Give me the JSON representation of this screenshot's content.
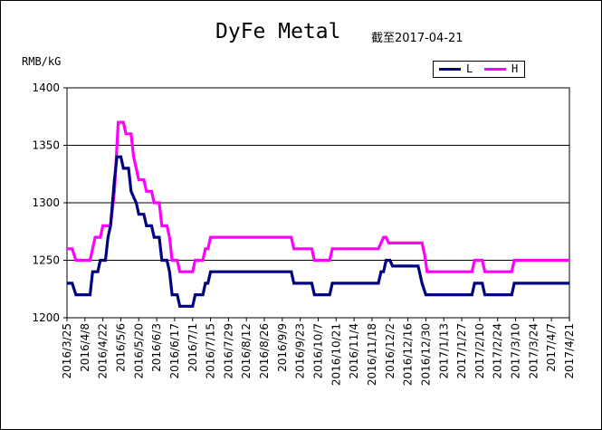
{
  "chart_data": {
    "type": "line",
    "title": "DyFe Metal",
    "subtitle": "截至2017-04-21",
    "ylabel": "RMB/kG",
    "xlabel": "",
    "ylim": [
      1200,
      1400
    ],
    "yticks": [
      1200,
      1250,
      1300,
      1350,
      1400
    ],
    "grid": "horizontal",
    "legend": "top-right",
    "colors": {
      "L": "#000080",
      "H": "#ff00ff"
    },
    "x_tick_labels": [
      "2016/3/25",
      "2016/4/8",
      "2016/4/22",
      "2016/5/6",
      "2016/5/20",
      "2016/6/3",
      "2016/6/17",
      "2016/7/1",
      "2016/7/15",
      "2016/7/29",
      "2016/8/12",
      "2016/8/26",
      "2016/9/9",
      "2016/9/23",
      "2016/10/7",
      "2016/10/21",
      "2016/11/4",
      "2016/11/18",
      "2016/12/2",
      "2016/12/16",
      "2016/12/30",
      "2017/1/13",
      "2017/1/27",
      "2017/2/10",
      "2017/2/24",
      "2017/3/10",
      "2017/3/24",
      "2017/4/7",
      "2017/4/21"
    ],
    "x_range": [
      "2016/3/25",
      "2017/4/21"
    ],
    "series": [
      {
        "name": "L",
        "points": [
          [
            "2016/3/25",
            1230
          ],
          [
            "2016/3/29",
            1230
          ],
          [
            "2016/4/1",
            1220
          ],
          [
            "2016/4/12",
            1220
          ],
          [
            "2016/4/14",
            1240
          ],
          [
            "2016/4/18",
            1240
          ],
          [
            "2016/4/20",
            1250
          ],
          [
            "2016/4/24",
            1250
          ],
          [
            "2016/4/26",
            1270
          ],
          [
            "2016/4/28",
            1280
          ],
          [
            "2016/5/1",
            1320
          ],
          [
            "2016/5/3",
            1340
          ],
          [
            "2016/5/6",
            1340
          ],
          [
            "2016/5/8",
            1330
          ],
          [
            "2016/5/12",
            1330
          ],
          [
            "2016/5/14",
            1310
          ],
          [
            "2016/5/16",
            1305
          ],
          [
            "2016/5/18",
            1300
          ],
          [
            "2016/5/20",
            1290
          ],
          [
            "2016/5/24",
            1290
          ],
          [
            "2016/5/26",
            1280
          ],
          [
            "2016/5/30",
            1280
          ],
          [
            "2016/6/1",
            1270
          ],
          [
            "2016/6/5",
            1270
          ],
          [
            "2016/6/7",
            1250
          ],
          [
            "2016/6/11",
            1250
          ],
          [
            "2016/6/13",
            1240
          ],
          [
            "2016/6/15",
            1220
          ],
          [
            "2016/6/19",
            1220
          ],
          [
            "2016/6/21",
            1210
          ],
          [
            "2016/7/1",
            1210
          ],
          [
            "2016/7/3",
            1220
          ],
          [
            "2016/7/9",
            1220
          ],
          [
            "2016/7/11",
            1230
          ],
          [
            "2016/7/13",
            1230
          ],
          [
            "2016/7/15",
            1240
          ],
          [
            "2016/9/16",
            1240
          ],
          [
            "2016/9/18",
            1230
          ],
          [
            "2016/10/2",
            1230
          ],
          [
            "2016/10/4",
            1220
          ],
          [
            "2016/10/16",
            1220
          ],
          [
            "2016/10/18",
            1230
          ],
          [
            "2016/11/23",
            1230
          ],
          [
            "2016/11/25",
            1240
          ],
          [
            "2016/11/27",
            1240
          ],
          [
            "2016/11/29",
            1250
          ],
          [
            "2016/12/2",
            1250
          ],
          [
            "2016/12/4",
            1245
          ],
          [
            "2016/12/24",
            1245
          ],
          [
            "2016/12/27",
            1230
          ],
          [
            "2016/12/30",
            1220
          ],
          [
            "2017/2/4",
            1220
          ],
          [
            "2017/2/6",
            1230
          ],
          [
            "2017/2/12",
            1230
          ],
          [
            "2017/2/14",
            1220
          ],
          [
            "2017/3/7",
            1220
          ],
          [
            "2017/3/9",
            1230
          ],
          [
            "2017/4/21",
            1230
          ]
        ]
      },
      {
        "name": "H",
        "points": [
          [
            "2016/3/25",
            1260
          ],
          [
            "2016/3/29",
            1260
          ],
          [
            "2016/4/1",
            1250
          ],
          [
            "2016/4/12",
            1250
          ],
          [
            "2016/4/14",
            1260
          ],
          [
            "2016/4/16",
            1270
          ],
          [
            "2016/4/20",
            1270
          ],
          [
            "2016/4/22",
            1280
          ],
          [
            "2016/4/28",
            1280
          ],
          [
            "2016/5/1",
            1310
          ],
          [
            "2016/5/3",
            1350
          ],
          [
            "2016/5/4",
            1370
          ],
          [
            "2016/5/8",
            1370
          ],
          [
            "2016/5/10",
            1360
          ],
          [
            "2016/5/14",
            1360
          ],
          [
            "2016/5/16",
            1340
          ],
          [
            "2016/5/18",
            1330
          ],
          [
            "2016/5/20",
            1320
          ],
          [
            "2016/5/24",
            1320
          ],
          [
            "2016/5/26",
            1310
          ],
          [
            "2016/5/30",
            1310
          ],
          [
            "2016/6/1",
            1300
          ],
          [
            "2016/6/5",
            1300
          ],
          [
            "2016/6/7",
            1280
          ],
          [
            "2016/6/11",
            1280
          ],
          [
            "2016/6/13",
            1270
          ],
          [
            "2016/6/15",
            1250
          ],
          [
            "2016/6/19",
            1250
          ],
          [
            "2016/6/21",
            1240
          ],
          [
            "2016/7/1",
            1240
          ],
          [
            "2016/7/3",
            1250
          ],
          [
            "2016/7/9",
            1250
          ],
          [
            "2016/7/11",
            1260
          ],
          [
            "2016/7/13",
            1260
          ],
          [
            "2016/7/15",
            1270
          ],
          [
            "2016/9/16",
            1270
          ],
          [
            "2016/9/18",
            1260
          ],
          [
            "2016/10/2",
            1260
          ],
          [
            "2016/10/4",
            1250
          ],
          [
            "2016/10/16",
            1250
          ],
          [
            "2016/10/18",
            1260
          ],
          [
            "2016/11/23",
            1260
          ],
          [
            "2016/11/25",
            1265
          ],
          [
            "2016/11/27",
            1270
          ],
          [
            "2016/11/29",
            1270
          ],
          [
            "2016/12/1",
            1265
          ],
          [
            "2016/12/27",
            1265
          ],
          [
            "2016/12/29",
            1255
          ],
          [
            "2016/12/31",
            1240
          ],
          [
            "2017/2/4",
            1240
          ],
          [
            "2017/2/6",
            1250
          ],
          [
            "2017/2/12",
            1250
          ],
          [
            "2017/2/14",
            1240
          ],
          [
            "2017/3/7",
            1240
          ],
          [
            "2017/3/9",
            1250
          ],
          [
            "2017/4/21",
            1250
          ]
        ]
      }
    ]
  }
}
